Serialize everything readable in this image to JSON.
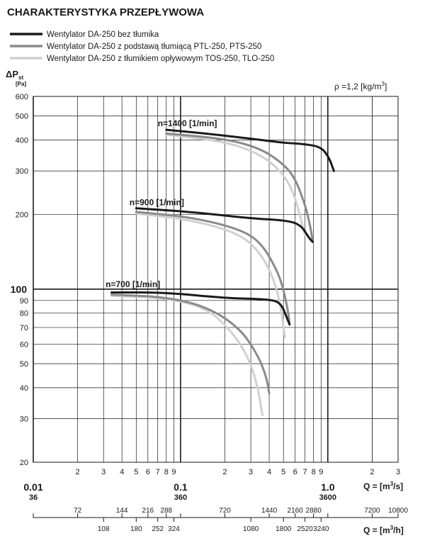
{
  "title": "CHARAKTERYSTYKA PRZEPŁYWOWA",
  "rho_label": "ρ =1,2 [kg/m",
  "rho_sup": "3",
  "rho_close": "]",
  "y_label_main": "ΔP",
  "y_label_sub": "st",
  "y_unit": "[Pa]",
  "x_label_m3s": "Q = [m",
  "x_label_m3s_sup": "3",
  "x_label_m3s_end": "/s]",
  "x_label_m3h": "Q = [m",
  "x_label_m3h_sup": "3",
  "x_label_m3h_end": "/h]",
  "colors": {
    "s1": "#1a1a1a",
    "s2": "#8a8a8a",
    "s3": "#d0d0d0"
  },
  "chart_data": {
    "type": "line",
    "title": "CHARAKTERYSTYKA PRZEPŁYWOWA",
    "xlabel": "Q = [m3/s]",
    "xlabel_secondary": "Q = [m3/h]",
    "ylabel": "ΔPst [Pa]",
    "x_scale": "log",
    "y_scale": "log",
    "xlim": [
      0.01,
      3
    ],
    "ylim": [
      20,
      600
    ],
    "grid": true,
    "legend_position": "top-left",
    "x_ticks_m3s": [
      "0.01",
      "2",
      "3",
      "4",
      "5",
      "6",
      "7",
      "8",
      "9",
      "0.1",
      "2",
      "3",
      "4",
      "5",
      "6",
      "7",
      "8",
      "9",
      "1.0",
      "2",
      "3"
    ],
    "x_ticks_m3h_top": [
      "36",
      "72",
      "144",
      "216",
      "288",
      "360",
      "720",
      "1440",
      "2160",
      "2880",
      "3600",
      "7200",
      "10800"
    ],
    "x_ticks_m3h_bottom": [
      "108",
      "180",
      "252",
      "324",
      "1080",
      "1800",
      "2520",
      "3240"
    ],
    "y_ticks": [
      "20",
      "30",
      "40",
      "50",
      "60",
      "70",
      "80",
      "90",
      "100",
      "200",
      "300",
      "400",
      "500",
      "600"
    ],
    "annotations": [
      "n=1400 [1/min]",
      "n=900 [1/min]",
      "n=700 [1/min]"
    ],
    "series": [
      {
        "name": "Wentylator DA-250 bez tłumika",
        "curves": [
          {
            "speed": "n=1400 [1/min]",
            "points": [
              [
                0.08,
                440
              ],
              [
                0.15,
                425
              ],
              [
                0.3,
                405
              ],
              [
                0.5,
                390
              ],
              [
                0.7,
                385
              ],
              [
                0.9,
                375
              ],
              [
                1.02,
                340
              ],
              [
                1.1,
                300
              ]
            ]
          },
          {
            "speed": "n=900 [1/min]",
            "points": [
              [
                0.05,
                212
              ],
              [
                0.12,
                205
              ],
              [
                0.3,
                193
              ],
              [
                0.5,
                190
              ],
              [
                0.65,
                183
              ],
              [
                0.75,
                160
              ],
              [
                0.79,
                155
              ]
            ]
          },
          {
            "speed": "n=700 [1/min]",
            "points": [
              [
                0.034,
                97
              ],
              [
                0.08,
                97
              ],
              [
                0.2,
                92
              ],
              [
                0.4,
                91
              ],
              [
                0.48,
                88
              ],
              [
                0.53,
                76
              ],
              [
                0.55,
                72
              ]
            ]
          }
        ]
      },
      {
        "name": "Wentylator DA-250 z podstawą tłumiącą PTL-250, PTS-250",
        "curves": [
          {
            "speed": "n=1400 [1/min]",
            "points": [
              [
                0.08,
                425
              ],
              [
                0.2,
                405
              ],
              [
                0.35,
                370
              ],
              [
                0.5,
                320
              ],
              [
                0.6,
                280
              ],
              [
                0.7,
                220
              ],
              [
                0.76,
                180
              ],
              [
                0.79,
                155
              ]
            ]
          },
          {
            "speed": "n=900 [1/min]",
            "points": [
              [
                0.05,
                205
              ],
              [
                0.12,
                195
              ],
              [
                0.25,
                175
              ],
              [
                0.35,
                155
              ],
              [
                0.45,
                120
              ],
              [
                0.5,
                100
              ],
              [
                0.54,
                80
              ],
              [
                0.55,
                72
              ]
            ]
          },
          {
            "speed": "n=700 [1/min]",
            "points": [
              [
                0.034,
                95
              ],
              [
                0.08,
                93
              ],
              [
                0.15,
                85
              ],
              [
                0.25,
                70
              ],
              [
                0.33,
                55
              ],
              [
                0.38,
                45
              ],
              [
                0.4,
                38
              ]
            ]
          }
        ]
      },
      {
        "name": "Wentylator DA-250 z tłumikiem opływowym TOS-250, TLO-250",
        "curves": [
          {
            "speed": "n=1400 [1/min]",
            "points": [
              [
                0.08,
                420
              ],
              [
                0.2,
                395
              ],
              [
                0.35,
                350
              ],
              [
                0.48,
                300
              ],
              [
                0.58,
                250
              ],
              [
                0.66,
                190
              ],
              [
                0.7,
                165
              ]
            ]
          },
          {
            "speed": "n=900 [1/min]",
            "points": [
              [
                0.05,
                202
              ],
              [
                0.12,
                190
              ],
              [
                0.25,
                168
              ],
              [
                0.35,
                140
              ],
              [
                0.43,
                110
              ],
              [
                0.48,
                85
              ],
              [
                0.51,
                64
              ]
            ]
          },
          {
            "speed": "n=700 [1/min]",
            "points": [
              [
                0.034,
                94
              ],
              [
                0.08,
                92
              ],
              [
                0.15,
                84
              ],
              [
                0.22,
                68
              ],
              [
                0.28,
                55
              ],
              [
                0.33,
                42
              ],
              [
                0.36,
                31
              ]
            ]
          }
        ]
      }
    ]
  }
}
